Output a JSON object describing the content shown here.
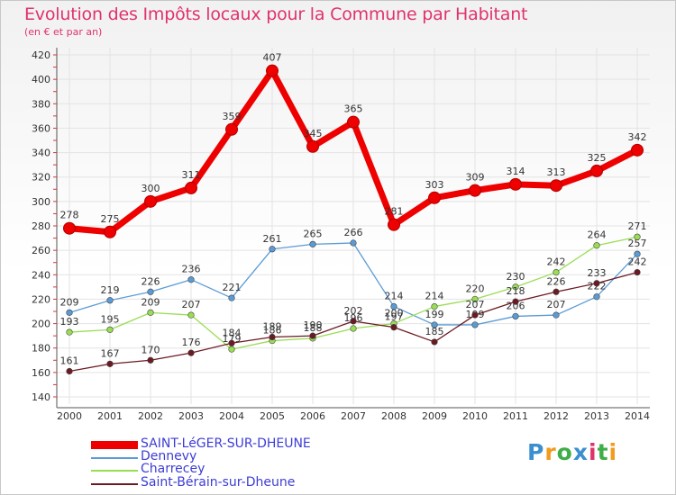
{
  "title": "Evolution des Impôts locaux pour la Commune par Habitant",
  "subtitle": "(en € et par an)",
  "brand": {
    "letters": [
      "P",
      "r",
      "o",
      "x",
      "i",
      "t",
      "i"
    ],
    "colors": [
      "#3b8fd1",
      "#f29b1d",
      "#3fae49",
      "#3b8fd1",
      "#e0336b",
      "#3fae49",
      "#f29b1d"
    ]
  },
  "chart_data": {
    "type": "line",
    "title": "Evolution des Impôts locaux pour la Commune par Habitant",
    "ylabel": "(en € et par an)",
    "xlabel": "",
    "ylim": [
      140,
      420
    ],
    "yticks": [
      140,
      160,
      180,
      200,
      220,
      240,
      260,
      280,
      300,
      320,
      340,
      360,
      380,
      400,
      420
    ],
    "x": [
      "2000",
      "2001",
      "2002",
      "2003",
      "2004",
      "2005",
      "2006",
      "2007",
      "2008",
      "2009",
      "2010",
      "2011",
      "2012",
      "2013",
      "2014"
    ],
    "grid": true,
    "legend_position": "bottom-left",
    "series": [
      {
        "name": "SAINT-LéGER-SUR-DHEUNE",
        "color": "#ee0000",
        "highlight": true,
        "values": [
          278,
          275,
          300,
          311,
          359,
          407,
          345,
          365,
          281,
          303,
          309,
          314,
          313,
          325,
          342
        ]
      },
      {
        "name": "Dennevy",
        "color": "#5b9bd5",
        "highlight": false,
        "values": [
          209,
          219,
          226,
          236,
          221,
          261,
          265,
          266,
          214,
          199,
          199,
          206,
          207,
          222,
          257
        ]
      },
      {
        "name": "Charrecey",
        "color": "#99dd55",
        "highlight": false,
        "values": [
          193,
          195,
          209,
          207,
          179,
          186,
          188,
          196,
          200,
          214,
          220,
          230,
          242,
          264,
          271
        ]
      },
      {
        "name": "Saint-Bérain-sur-Dheune",
        "color": "#6b1a22",
        "highlight": false,
        "values": [
          161,
          167,
          170,
          176,
          184,
          189,
          190,
          202,
          197,
          185,
          207,
          218,
          226,
          233,
          242
        ]
      }
    ]
  }
}
